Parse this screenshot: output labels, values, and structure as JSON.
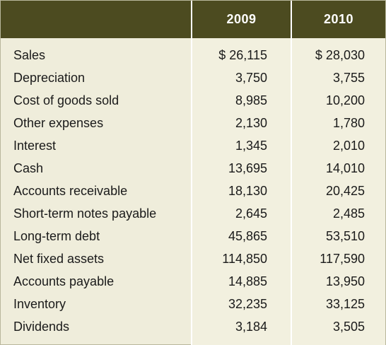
{
  "table": {
    "headers": {
      "label": "",
      "y2009": "2009",
      "y2010": "2010"
    },
    "rows": [
      {
        "label": "Sales",
        "y2009": "$ 26,115",
        "y2010": "$ 28,030"
      },
      {
        "label": "Depreciation",
        "y2009": "3,750",
        "y2010": "3,755"
      },
      {
        "label": "Cost of goods sold",
        "y2009": "8,985",
        "y2010": "10,200"
      },
      {
        "label": "Other expenses",
        "y2009": "2,130",
        "y2010": "1,780"
      },
      {
        "label": "Interest",
        "y2009": "1,345",
        "y2010": "2,010"
      },
      {
        "label": "Cash",
        "y2009": "13,695",
        "y2010": "14,010"
      },
      {
        "label": "Accounts receivable",
        "y2009": "18,130",
        "y2010": "20,425"
      },
      {
        "label": "Short-term notes payable",
        "y2009": "2,645",
        "y2010": "2,485"
      },
      {
        "label": "Long-term debt",
        "y2009": "45,865",
        "y2010": "53,510"
      },
      {
        "label": "Net fixed assets",
        "y2009": "114,850",
        "y2010": "117,590"
      },
      {
        "label": "Accounts payable",
        "y2009": "14,885",
        "y2010": "13,950"
      },
      {
        "label": "Inventory",
        "y2009": "32,235",
        "y2010": "33,125"
      },
      {
        "label": "Dividends",
        "y2009": "3,184",
        "y2010": "3,505"
      }
    ]
  },
  "colors": {
    "header_bg": "#4c4b20",
    "body_bg": "#efeddb",
    "header_text": "#ffffff"
  }
}
